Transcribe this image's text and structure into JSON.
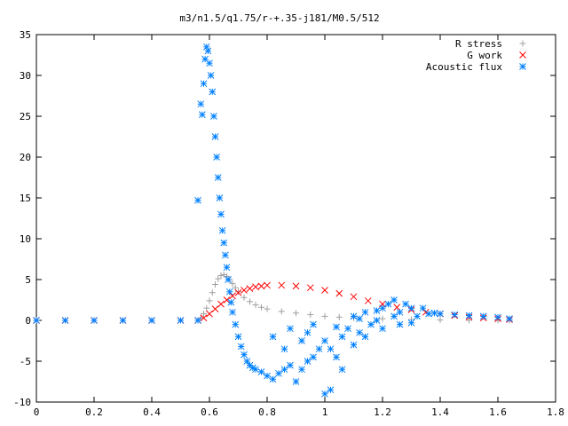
{
  "chart_data": {
    "type": "scatter",
    "title": "m3/n1.5/q1.75/r-+.35-j181/M0.5/512",
    "xlabel": "",
    "ylabel": "",
    "xlim": [
      0,
      1.8
    ],
    "ylim": [
      -10,
      35
    ],
    "xticks": [
      "0",
      "0.2",
      "0.4",
      "0.6",
      "0.8",
      "1",
      "1.2",
      "1.4",
      "1.6",
      "1.8"
    ],
    "yticks": [
      "-10",
      "-5",
      "0",
      "5",
      "10",
      "15",
      "20",
      "25",
      "30",
      "35"
    ],
    "grid": false,
    "legend_position": "top-right",
    "series": [
      {
        "name": "R stress",
        "marker": "+",
        "color": "#a0a0a0",
        "points": [
          [
            0.0,
            0
          ],
          [
            0.1,
            0
          ],
          [
            0.2,
            0
          ],
          [
            0.3,
            0
          ],
          [
            0.4,
            0
          ],
          [
            0.5,
            0
          ],
          [
            0.56,
            0
          ],
          [
            0.57,
            0.3
          ],
          [
            0.58,
            0.8
          ],
          [
            0.59,
            1.5
          ],
          [
            0.6,
            2.4
          ],
          [
            0.61,
            3.4
          ],
          [
            0.62,
            4.4
          ],
          [
            0.63,
            5.1
          ],
          [
            0.64,
            5.5
          ],
          [
            0.65,
            5.6
          ],
          [
            0.66,
            5.4
          ],
          [
            0.67,
            5.0
          ],
          [
            0.68,
            4.5
          ],
          [
            0.69,
            4.0
          ],
          [
            0.7,
            3.5
          ],
          [
            0.72,
            2.8
          ],
          [
            0.74,
            2.3
          ],
          [
            0.76,
            1.9
          ],
          [
            0.78,
            1.6
          ],
          [
            0.8,
            1.4
          ],
          [
            0.85,
            1.1
          ],
          [
            0.9,
            0.9
          ],
          [
            0.95,
            0.7
          ],
          [
            1.0,
            0.5
          ],
          [
            1.05,
            0.4
          ],
          [
            1.1,
            0.3
          ],
          [
            1.2,
            0.2
          ],
          [
            1.3,
            0.1
          ],
          [
            1.4,
            0.05
          ],
          [
            1.5,
            0.02
          ],
          [
            1.6,
            0.01
          ],
          [
            1.64,
            0
          ]
        ]
      },
      {
        "name": "G work",
        "marker": "x",
        "color": "#ff0000",
        "points": [
          [
            0.0,
            0
          ],
          [
            0.1,
            0
          ],
          [
            0.2,
            0
          ],
          [
            0.3,
            0
          ],
          [
            0.4,
            0
          ],
          [
            0.5,
            0
          ],
          [
            0.56,
            0
          ],
          [
            0.58,
            0.3
          ],
          [
            0.6,
            0.8
          ],
          [
            0.62,
            1.4
          ],
          [
            0.64,
            2.0
          ],
          [
            0.66,
            2.5
          ],
          [
            0.68,
            3.0
          ],
          [
            0.7,
            3.4
          ],
          [
            0.72,
            3.7
          ],
          [
            0.74,
            3.9
          ],
          [
            0.76,
            4.1
          ],
          [
            0.78,
            4.2
          ],
          [
            0.8,
            4.3
          ],
          [
            0.85,
            4.3
          ],
          [
            0.9,
            4.2
          ],
          [
            0.95,
            4.0
          ],
          [
            1.0,
            3.7
          ],
          [
            1.05,
            3.3
          ],
          [
            1.1,
            2.9
          ],
          [
            1.15,
            2.4
          ],
          [
            1.2,
            2.0
          ],
          [
            1.25,
            1.6
          ],
          [
            1.3,
            1.3
          ],
          [
            1.35,
            1.0
          ],
          [
            1.4,
            0.8
          ],
          [
            1.45,
            0.6
          ],
          [
            1.5,
            0.4
          ],
          [
            1.55,
            0.3
          ],
          [
            1.6,
            0.2
          ],
          [
            1.64,
            0.1
          ]
        ]
      },
      {
        "name": "Acoustic flux",
        "marker": "*",
        "color": "#0080ff",
        "points": [
          [
            0.0,
            0
          ],
          [
            0.1,
            0
          ],
          [
            0.2,
            0
          ],
          [
            0.3,
            0
          ],
          [
            0.4,
            0
          ],
          [
            0.5,
            0
          ],
          [
            0.56,
            0
          ],
          [
            0.56,
            14.7
          ],
          [
            0.57,
            26.5
          ],
          [
            0.575,
            25.2
          ],
          [
            0.58,
            29.0
          ],
          [
            0.585,
            32.0
          ],
          [
            0.59,
            33.5
          ],
          [
            0.595,
            33.0
          ],
          [
            0.6,
            31.5
          ],
          [
            0.605,
            30.0
          ],
          [
            0.61,
            28.0
          ],
          [
            0.615,
            25.0
          ],
          [
            0.62,
            22.5
          ],
          [
            0.625,
            20.0
          ],
          [
            0.63,
            17.5
          ],
          [
            0.635,
            15.0
          ],
          [
            0.64,
            13.0
          ],
          [
            0.645,
            11.0
          ],
          [
            0.65,
            9.5
          ],
          [
            0.655,
            8.0
          ],
          [
            0.66,
            6.5
          ],
          [
            0.665,
            5.0
          ],
          [
            0.67,
            3.5
          ],
          [
            0.675,
            2.2
          ],
          [
            0.68,
            1.0
          ],
          [
            0.69,
            -0.5
          ],
          [
            0.7,
            -2.0
          ],
          [
            0.71,
            -3.2
          ],
          [
            0.72,
            -4.2
          ],
          [
            0.73,
            -5.0
          ],
          [
            0.74,
            -5.5
          ],
          [
            0.75,
            -5.8
          ],
          [
            0.76,
            -6.0
          ],
          [
            0.78,
            -6.3
          ],
          [
            0.8,
            -6.8
          ],
          [
            0.82,
            -7.2
          ],
          [
            0.84,
            -6.5
          ],
          [
            0.86,
            -6.0
          ],
          [
            0.88,
            -5.5
          ],
          [
            0.9,
            -7.5
          ],
          [
            0.92,
            -6.0
          ],
          [
            0.94,
            -5.0
          ],
          [
            0.96,
            -4.5
          ],
          [
            0.98,
            -3.5
          ],
          [
            1.0,
            -2.5
          ],
          [
            1.02,
            -3.5
          ],
          [
            1.04,
            -4.5
          ],
          [
            1.06,
            -2.0
          ],
          [
            1.08,
            -1.0
          ],
          [
            1.1,
            0.5
          ],
          [
            1.12,
            -1.5
          ],
          [
            1.14,
            1.0
          ],
          [
            1.16,
            -0.5
          ],
          [
            1.18,
            0.0
          ],
          [
            1.2,
            1.5
          ],
          [
            1.22,
            2.0
          ],
          [
            1.24,
            0.5
          ],
          [
            1.26,
            1.0
          ],
          [
            1.28,
            2.0
          ],
          [
            1.3,
            1.5
          ],
          [
            1.32,
            0.5
          ],
          [
            1.34,
            1.5
          ],
          [
            1.36,
            0.8
          ],
          [
            1.38,
            0.9
          ],
          [
            1.4,
            0.8
          ],
          [
            1.45,
            0.7
          ],
          [
            1.5,
            0.6
          ],
          [
            1.55,
            0.5
          ],
          [
            1.6,
            0.4
          ],
          [
            1.64,
            0.2
          ],
          [
            0.82,
            -2.0
          ],
          [
            0.86,
            -3.5
          ],
          [
            0.92,
            -2.5
          ],
          [
            0.96,
            -0.5
          ],
          [
            1.0,
            -9.0
          ],
          [
            1.02,
            -8.5
          ],
          [
            1.06,
            -6.0
          ],
          [
            1.1,
            -3.0
          ],
          [
            1.14,
            -2.0
          ],
          [
            1.2,
            -1.0
          ],
          [
            1.26,
            -0.5
          ],
          [
            1.3,
            -0.3
          ],
          [
            0.88,
            -1.0
          ],
          [
            0.94,
            -1.5
          ],
          [
            1.04,
            -0.8
          ],
          [
            1.12,
            0.2
          ],
          [
            1.18,
            1.2
          ],
          [
            1.24,
            2.5
          ]
        ]
      }
    ]
  }
}
